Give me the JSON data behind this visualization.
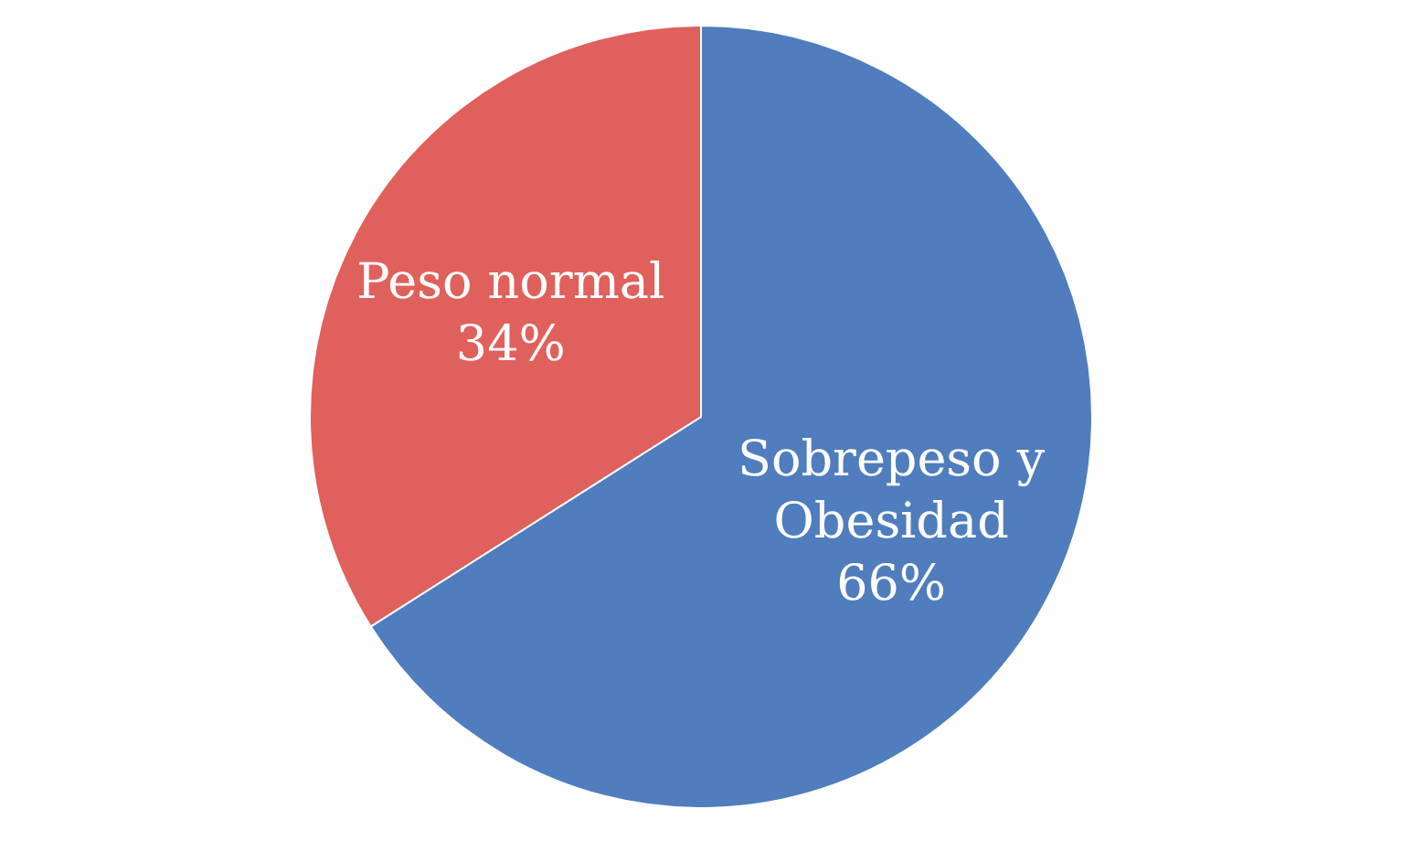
{
  "chart_data": {
    "type": "pie",
    "categories": [
      "Sobrepeso y Obesidad",
      "Peso normal"
    ],
    "values": [
      66,
      34
    ],
    "colors": [
      "#4f7dbd",
      "#e0605c"
    ],
    "value_labels": [
      "66%",
      "34%"
    ],
    "legend": false
  }
}
